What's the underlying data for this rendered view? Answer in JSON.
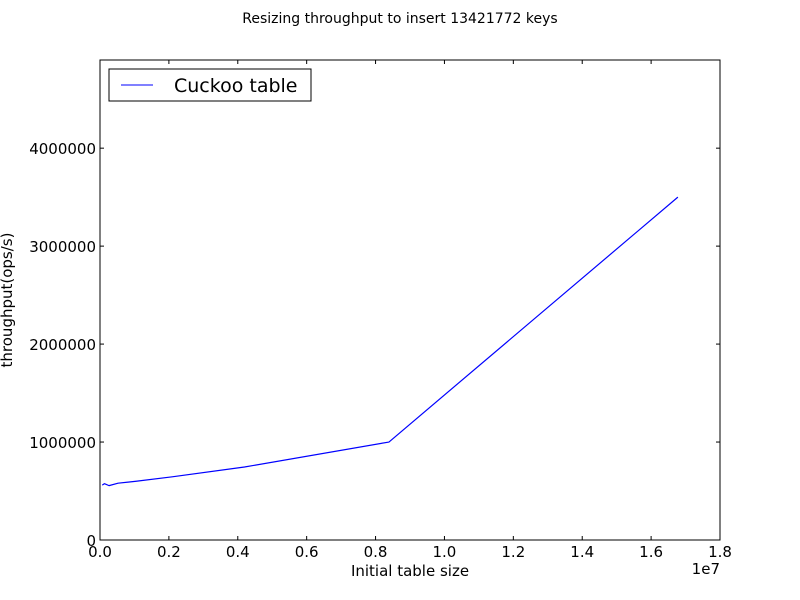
{
  "chart_data": {
    "type": "line",
    "title": "Resizing throughput to insert 13421772 keys",
    "xlabel": "Initial table size",
    "ylabel": "throughput(ops/s)",
    "x_offset_label": "1e7",
    "xlim": [
      0,
      18000000
    ],
    "ylim": [
      0,
      4900000
    ],
    "x_ticks": [
      0,
      2000000,
      4000000,
      6000000,
      8000000,
      10000000,
      12000000,
      14000000,
      16000000,
      18000000
    ],
    "x_tick_labels": [
      "0.0",
      "0.2",
      "0.4",
      "0.6",
      "0.8",
      "1.0",
      "1.2",
      "1.4",
      "1.6",
      "1.8"
    ],
    "y_ticks": [
      0,
      1000000,
      2000000,
      3000000,
      4000000
    ],
    "y_tick_labels": [
      "0",
      "1000000",
      "2000000",
      "3000000",
      "4000000"
    ],
    "grid": false,
    "legend_position": "top-left",
    "series": [
      {
        "name": "Cuckoo table",
        "color": "#0000ff",
        "x": [
          65536,
          131072,
          262144,
          524288,
          1048576,
          2097152,
          4194304,
          8388608,
          16777216
        ],
        "y": [
          560000,
          575000,
          555000,
          580000,
          600000,
          645000,
          745000,
          1000000,
          3500000
        ]
      }
    ]
  }
}
